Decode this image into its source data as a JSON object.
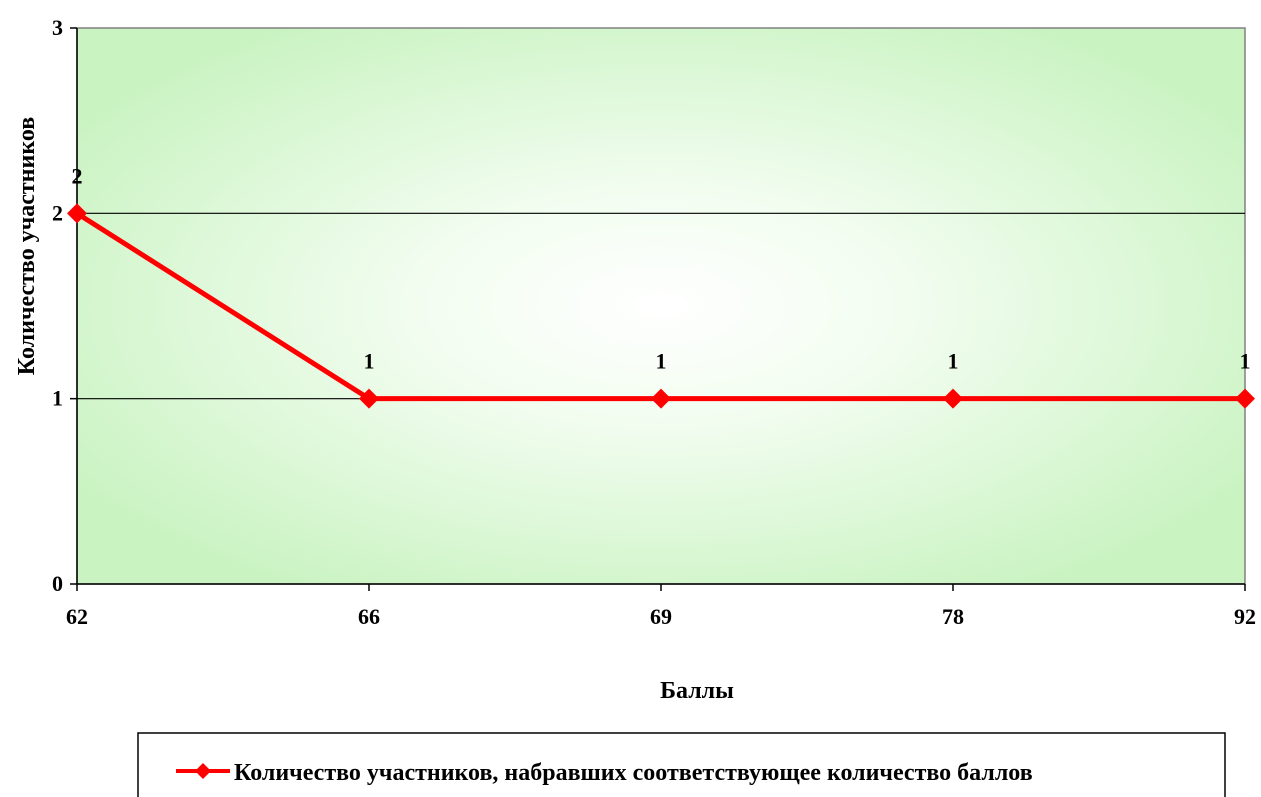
{
  "chart_data": {
    "type": "line",
    "categories": [
      "62",
      "66",
      "69",
      "78",
      "92"
    ],
    "series": [
      {
        "name": "Количество участников, набравших соответствующее количество баллов",
        "values": [
          2,
          1,
          1,
          1,
          1
        ],
        "color": "#ff0000",
        "marker": "diamond"
      }
    ],
    "data_labels": [
      "2",
      "1",
      "1",
      "1",
      "1"
    ],
    "xlabel": "Баллы",
    "ylabel": "Количество участников",
    "ylim": [
      0,
      3
    ],
    "yticks": [
      "0",
      "1",
      "2",
      "3"
    ],
    "grid": "horizontal",
    "legend_position": "bottom",
    "plot_background": "radial gradient white center to #c8f5c0 edges"
  }
}
